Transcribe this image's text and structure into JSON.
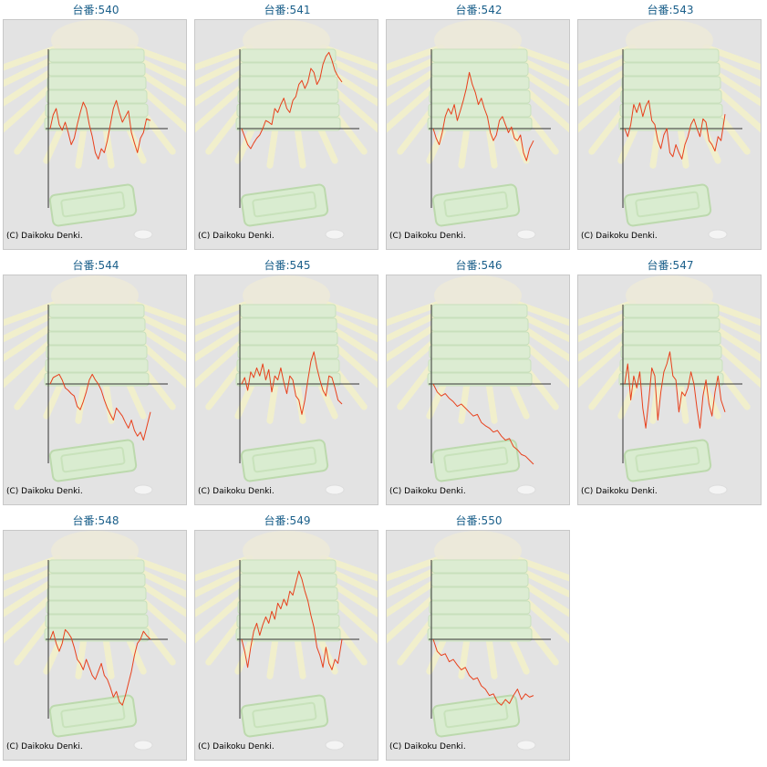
{
  "colors": {
    "line": "#e8401c",
    "axis": "#333333",
    "panel": "#e3e3e3",
    "title": "#1a5f8a"
  },
  "cells": [
    {
      "title": "台番:540",
      "credit": "(C) Daikoku Denki."
    },
    {
      "title": "台番:541",
      "credit": "(C) Daikoku Denki."
    },
    {
      "title": "台番:542",
      "credit": "(C) Daikoku Denki."
    },
    {
      "title": "台番:543",
      "credit": "(C) Daikoku Denki."
    },
    {
      "title": "台番:544",
      "credit": "(C) Daikoku Denki."
    },
    {
      "title": "台番:545",
      "credit": "(C) Daikoku Denki."
    },
    {
      "title": "台番:546",
      "credit": "(C) Daikoku Denki."
    },
    {
      "title": "台番:547",
      "credit": "(C) Daikoku Denki."
    },
    {
      "title": "台番:548",
      "credit": "(C) Daikoku Denki."
    },
    {
      "title": "台番:549",
      "credit": "(C) Daikoku Denki."
    },
    {
      "title": "台番:550",
      "credit": "(C) Daikoku Denki."
    }
  ],
  "chart_data": [
    {
      "type": "line",
      "x": [
        0,
        0.03,
        0.06,
        0.09,
        0.12,
        0.15,
        0.18,
        0.21,
        0.24,
        0.27,
        0.3,
        0.33,
        0.36,
        0.39,
        0.42,
        0.45,
        0.48,
        0.51,
        0.54,
        0.57,
        0.6,
        0.63,
        0.66,
        0.69,
        0.72,
        0.75,
        0.78,
        0.81,
        0.84,
        0.87,
        0.9,
        0.93,
        0.96,
        1.0
      ],
      "y": [
        0,
        0.17,
        0.25,
        0.05,
        -0.02,
        0.08,
        -0.05,
        -0.2,
        -0.12,
        0.05,
        0.2,
        0.33,
        0.25,
        0.05,
        -0.1,
        -0.3,
        -0.38,
        -0.25,
        -0.3,
        -0.15,
        0.05,
        0.25,
        0.35,
        0.2,
        0.08,
        0.15,
        0.22,
        -0.05,
        -0.18,
        -0.3,
        -0.12,
        -0.05,
        0.12,
        0.1
      ]
    },
    {
      "type": "line",
      "x": [
        0,
        0.03,
        0.06,
        0.09,
        0.12,
        0.15,
        0.18,
        0.21,
        0.24,
        0.27,
        0.3,
        0.33,
        0.36,
        0.39,
        0.42,
        0.45,
        0.48,
        0.51,
        0.54,
        0.57,
        0.6,
        0.63,
        0.66,
        0.69,
        0.72,
        0.75,
        0.78,
        0.81,
        0.84,
        0.87,
        0.9,
        0.93,
        0.96,
        1.0
      ],
      "y": [
        0,
        -0.1,
        -0.2,
        -0.25,
        -0.18,
        -0.12,
        -0.08,
        0.0,
        0.1,
        0.08,
        0.05,
        0.25,
        0.2,
        0.3,
        0.38,
        0.25,
        0.2,
        0.35,
        0.4,
        0.55,
        0.6,
        0.5,
        0.58,
        0.75,
        0.7,
        0.55,
        0.62,
        0.8,
        0.9,
        0.95,
        0.85,
        0.72,
        0.65,
        0.58
      ]
    },
    {
      "type": "line",
      "x": [
        0,
        0.03,
        0.06,
        0.09,
        0.12,
        0.15,
        0.18,
        0.21,
        0.24,
        0.27,
        0.3,
        0.33,
        0.36,
        0.39,
        0.42,
        0.45,
        0.48,
        0.51,
        0.54,
        0.57,
        0.6,
        0.63,
        0.66,
        0.69,
        0.72,
        0.75,
        0.78,
        0.81,
        0.84,
        0.87,
        0.9,
        0.93,
        0.96,
        1.0
      ],
      "y": [
        0,
        -0.12,
        -0.2,
        -0.05,
        0.15,
        0.25,
        0.18,
        0.3,
        0.1,
        0.22,
        0.35,
        0.5,
        0.7,
        0.55,
        0.45,
        0.3,
        0.38,
        0.25,
        0.15,
        -0.05,
        -0.15,
        -0.08,
        0.1,
        0.15,
        0.05,
        -0.05,
        0.02,
        -0.12,
        -0.15,
        -0.08,
        -0.3,
        -0.4,
        -0.25,
        -0.15
      ]
    },
    {
      "type": "line",
      "x": [
        0,
        0.03,
        0.06,
        0.09,
        0.12,
        0.15,
        0.18,
        0.21,
        0.24,
        0.27,
        0.3,
        0.33,
        0.36,
        0.39,
        0.42,
        0.45,
        0.48,
        0.51,
        0.54,
        0.57,
        0.6,
        0.63,
        0.66,
        0.69,
        0.72,
        0.75,
        0.78,
        0.81,
        0.84,
        0.87,
        0.9,
        0.93,
        0.96,
        1.0
      ],
      "y": [
        0,
        -0.1,
        0.05,
        0.3,
        0.2,
        0.32,
        0.15,
        0.28,
        0.35,
        0.1,
        0.05,
        -0.15,
        -0.25,
        -0.08,
        0.0,
        -0.3,
        -0.35,
        -0.2,
        -0.3,
        -0.38,
        -0.2,
        -0.1,
        0.05,
        0.12,
        0.0,
        -0.1,
        0.12,
        0.08,
        -0.15,
        -0.2,
        -0.28,
        -0.1,
        -0.15,
        0.18
      ]
    },
    {
      "type": "line",
      "x": [
        0,
        0.03,
        0.06,
        0.09,
        0.12,
        0.15,
        0.18,
        0.21,
        0.24,
        0.27,
        0.3,
        0.33,
        0.36,
        0.39,
        0.42,
        0.45,
        0.48,
        0.51,
        0.54,
        0.57,
        0.6,
        0.63,
        0.66,
        0.69,
        0.72,
        0.75,
        0.78,
        0.81,
        0.84,
        0.87,
        0.9,
        0.93,
        0.96,
        1.0
      ],
      "y": [
        0,
        0.08,
        0.1,
        0.12,
        0.05,
        -0.05,
        -0.08,
        -0.12,
        -0.15,
        -0.28,
        -0.32,
        -0.22,
        -0.1,
        0.05,
        0.12,
        0.05,
        0.0,
        -0.08,
        -0.2,
        -0.3,
        -0.38,
        -0.45,
        -0.3,
        -0.35,
        -0.4,
        -0.48,
        -0.55,
        -0.45,
        -0.58,
        -0.65,
        -0.6,
        -0.7,
        -0.55,
        -0.35
      ]
    },
    {
      "type": "line",
      "x": [
        0,
        0.03,
        0.06,
        0.09,
        0.12,
        0.15,
        0.18,
        0.21,
        0.24,
        0.27,
        0.3,
        0.33,
        0.36,
        0.39,
        0.42,
        0.45,
        0.48,
        0.51,
        0.54,
        0.57,
        0.6,
        0.63,
        0.66,
        0.69,
        0.72,
        0.75,
        0.78,
        0.81,
        0.84,
        0.87,
        0.9,
        0.93,
        0.96,
        1.0
      ],
      "y": [
        0,
        0.08,
        -0.08,
        0.15,
        0.08,
        0.2,
        0.1,
        0.25,
        0.05,
        0.18,
        -0.1,
        0.1,
        0.05,
        0.2,
        0.02,
        -0.12,
        0.1,
        0.05,
        -0.15,
        -0.2,
        -0.38,
        -0.2,
        0.05,
        0.28,
        0.4,
        0.2,
        0.05,
        -0.08,
        -0.15,
        0.1,
        0.08,
        -0.05,
        -0.2,
        -0.25
      ]
    },
    {
      "type": "line",
      "x": [
        0,
        0.04,
        0.08,
        0.12,
        0.16,
        0.2,
        0.24,
        0.28,
        0.32,
        0.36,
        0.4,
        0.44,
        0.48,
        0.52,
        0.56,
        0.6,
        0.64,
        0.68,
        0.72,
        0.76,
        0.8,
        0.84,
        0.88,
        0.92,
        0.96,
        1.0
      ],
      "y": [
        0,
        -0.1,
        -0.15,
        -0.12,
        -0.18,
        -0.22,
        -0.28,
        -0.25,
        -0.3,
        -0.35,
        -0.4,
        -0.38,
        -0.48,
        -0.52,
        -0.55,
        -0.6,
        -0.58,
        -0.65,
        -0.7,
        -0.68,
        -0.78,
        -0.82,
        -0.88,
        -0.9,
        -0.95,
        -1.0
      ]
    },
    {
      "type": "line",
      "x": [
        0,
        0.03,
        0.06,
        0.09,
        0.12,
        0.15,
        0.18,
        0.21,
        0.24,
        0.27,
        0.3,
        0.33,
        0.36,
        0.39,
        0.42,
        0.45,
        0.48,
        0.51,
        0.54,
        0.57,
        0.6,
        0.63,
        0.66,
        0.69,
        0.72,
        0.75,
        0.78,
        0.81,
        0.84,
        0.87,
        0.9,
        0.93,
        0.96,
        1.0
      ],
      "y": [
        0,
        0.25,
        -0.2,
        0.1,
        -0.05,
        0.15,
        -0.3,
        -0.55,
        -0.2,
        0.2,
        0.1,
        -0.45,
        -0.1,
        0.15,
        0.25,
        0.4,
        0.1,
        0.05,
        -0.35,
        -0.1,
        -0.15,
        -0.05,
        0.15,
        0.0,
        -0.3,
        -0.55,
        -0.15,
        0.05,
        -0.25,
        -0.4,
        -0.1,
        0.1,
        -0.2,
        -0.35
      ]
    },
    {
      "type": "line",
      "x": [
        0,
        0.03,
        0.06,
        0.09,
        0.12,
        0.15,
        0.18,
        0.21,
        0.24,
        0.27,
        0.3,
        0.33,
        0.36,
        0.39,
        0.42,
        0.45,
        0.48,
        0.51,
        0.54,
        0.57,
        0.6,
        0.63,
        0.66,
        0.69,
        0.72,
        0.75,
        0.78,
        0.81,
        0.84,
        0.87,
        0.9,
        0.93,
        0.96,
        1.0
      ],
      "y": [
        0,
        0.1,
        -0.05,
        -0.15,
        -0.05,
        0.12,
        0.08,
        0.02,
        -0.1,
        -0.25,
        -0.3,
        -0.38,
        -0.25,
        -0.35,
        -0.45,
        -0.5,
        -0.4,
        -0.3,
        -0.45,
        -0.5,
        -0.6,
        -0.72,
        -0.65,
        -0.78,
        -0.82,
        -0.7,
        -0.55,
        -0.4,
        -0.2,
        -0.05,
        0.0,
        0.1,
        0.05,
        0.0
      ]
    },
    {
      "type": "line",
      "x": [
        0,
        0.03,
        0.06,
        0.09,
        0.12,
        0.15,
        0.18,
        0.21,
        0.24,
        0.27,
        0.3,
        0.33,
        0.36,
        0.39,
        0.42,
        0.45,
        0.48,
        0.51,
        0.54,
        0.57,
        0.6,
        0.63,
        0.66,
        0.69,
        0.72,
        0.75,
        0.78,
        0.81,
        0.84,
        0.87,
        0.9,
        0.93,
        0.96,
        1.0
      ],
      "y": [
        0,
        -0.15,
        -0.35,
        -0.1,
        0.1,
        0.2,
        0.05,
        0.18,
        0.28,
        0.2,
        0.35,
        0.25,
        0.45,
        0.38,
        0.5,
        0.42,
        0.6,
        0.55,
        0.7,
        0.85,
        0.75,
        0.6,
        0.48,
        0.3,
        0.15,
        -0.1,
        -0.2,
        -0.35,
        -0.1,
        -0.3,
        -0.38,
        -0.25,
        -0.3,
        0.0
      ]
    },
    {
      "type": "line",
      "x": [
        0,
        0.04,
        0.08,
        0.12,
        0.16,
        0.2,
        0.24,
        0.28,
        0.32,
        0.36,
        0.4,
        0.44,
        0.48,
        0.52,
        0.56,
        0.6,
        0.64,
        0.68,
        0.72,
        0.76,
        0.8,
        0.84,
        0.88,
        0.92,
        0.96,
        1.0
      ],
      "y": [
        0,
        -0.15,
        -0.2,
        -0.18,
        -0.28,
        -0.25,
        -0.32,
        -0.38,
        -0.35,
        -0.45,
        -0.5,
        -0.48,
        -0.58,
        -0.62,
        -0.7,
        -0.68,
        -0.78,
        -0.82,
        -0.75,
        -0.8,
        -0.7,
        -0.62,
        -0.75,
        -0.68,
        -0.72,
        -0.7
      ]
    }
  ]
}
